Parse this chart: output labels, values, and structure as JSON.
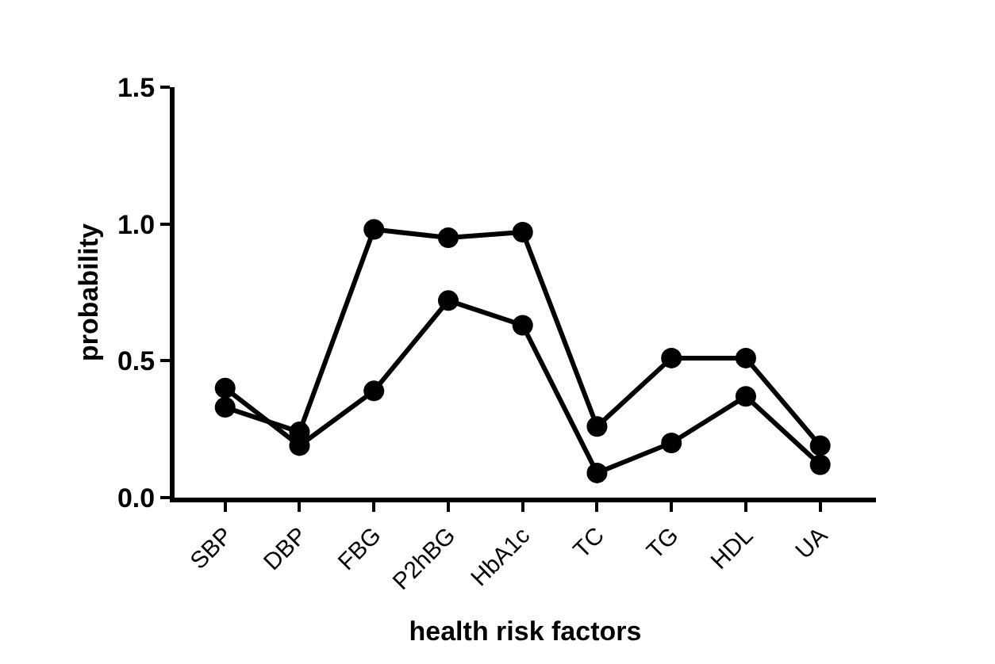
{
  "chart_data": {
    "type": "line",
    "xlabel": "health risk factors",
    "ylabel": "probability",
    "categories": [
      "SBP",
      "DBP",
      "FBG",
      "P2hBG",
      "HbA1c",
      "TC",
      "TG",
      "HDL",
      "UA"
    ],
    "series": [
      {
        "color": "#000000",
        "values": [
          0.33,
          0.24,
          0.98,
          0.95,
          0.97,
          0.26,
          0.51,
          0.51,
          0.19
        ]
      },
      {
        "color": "#000000",
        "values": [
          0.4,
          0.19,
          0.39,
          0.72,
          0.63,
          0.09,
          0.2,
          0.37,
          0.12
        ]
      }
    ],
    "ylim": [
      0,
      1.5
    ],
    "yticks": [
      {
        "value": 0,
        "label": "0.0"
      },
      {
        "value": 0.5,
        "label": "0.5"
      },
      {
        "value": 1,
        "label": "1.0"
      },
      {
        "value": 1.5,
        "label": "1.5"
      }
    ],
    "marker": "circle",
    "line_style": "solid"
  }
}
